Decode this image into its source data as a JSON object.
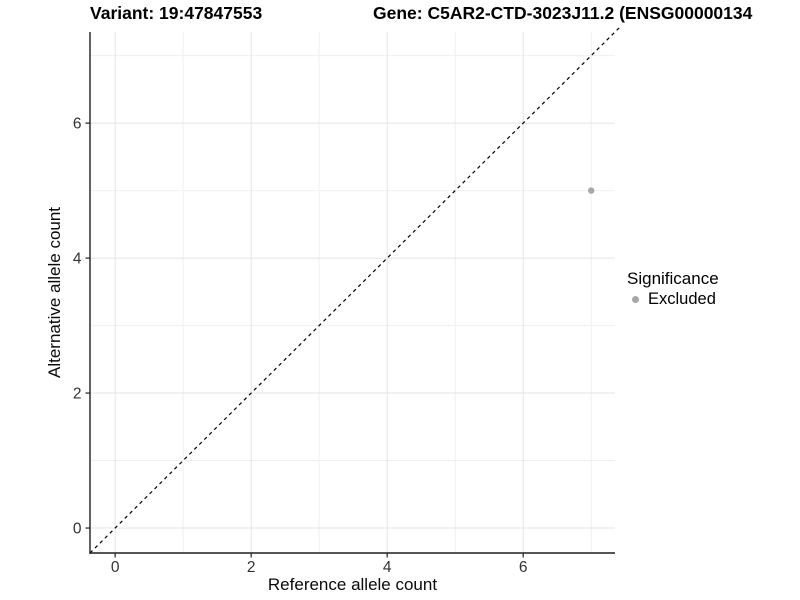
{
  "titles": {
    "variant": "Variant: 19:47847553",
    "gene": "Gene: C5AR2-CTD-3023J11.2 (ENSG00000134"
  },
  "chart_data": {
    "type": "scatter",
    "xlabel": "Reference allele count",
    "ylabel": "Alternative allele count",
    "xlim": [
      -0.37,
      7.35
    ],
    "ylim": [
      -0.37,
      7.35
    ],
    "xticks": [
      0,
      2,
      4,
      6
    ],
    "yticks": [
      0,
      2,
      4,
      6
    ],
    "xminor": [
      1,
      3,
      5,
      7
    ],
    "yminor": [
      1,
      3,
      5,
      7
    ],
    "grid": "major-and-minor",
    "identity_line": {
      "style": "dashed",
      "slope": 1,
      "intercept": 0,
      "from": -0.37,
      "to": 7.42,
      "color": "#000000"
    },
    "series": [
      {
        "name": "Excluded",
        "color": "#a8a8a8",
        "points": [
          {
            "x": 7,
            "y": 5
          }
        ]
      }
    ],
    "legend": {
      "title": "Significance",
      "position": "right",
      "items": [
        {
          "label": "Excluded",
          "color": "#a8a8a8"
        }
      ]
    }
  },
  "colors": {
    "point_gray": "#a8a8a8",
    "grid_major": "#e4e4e4",
    "grid_minor": "#f0f0f0",
    "axis_line": "#1f1f1f",
    "tick_text": "#333333",
    "label_text": "#0a0a0a",
    "identity_line": "#000000",
    "background": "#ffffff"
  }
}
